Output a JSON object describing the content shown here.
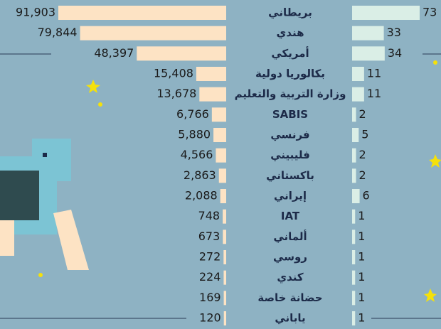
{
  "chart_data": {
    "type": "bar",
    "categories": [
      "بريطاني",
      "هندي",
      "أمريكي",
      "بكالوريا دولية",
      "وزارة التربية والتعليم",
      "SABIS",
      "فرنسي",
      "فليبيني",
      "باكستاني",
      "إيراني",
      "IAT",
      "ألماني",
      "روسي",
      "كندي",
      "حضانة خاصة",
      "ياباني"
    ],
    "series": [
      {
        "color": "#fde3c4",
        "values": [
          91903,
          79844,
          48397,
          15408,
          13678,
          6766,
          5880,
          4566,
          2863,
          2088,
          748,
          673,
          272,
          224,
          169,
          120
        ],
        "value_labels": [
          "91,903",
          "79,844",
          "48,397",
          "15,408",
          "13,678",
          "6,766",
          "5,880",
          "4,566",
          "2,863",
          "2,088",
          "748",
          "673",
          "272",
          "224",
          "169",
          "120"
        ]
      },
      {
        "color": "#daeee6",
        "values": [
          73,
          33,
          34,
          11,
          11,
          2,
          5,
          2,
          2,
          6,
          1,
          1,
          1,
          1,
          1,
          1
        ]
      }
    ]
  }
}
